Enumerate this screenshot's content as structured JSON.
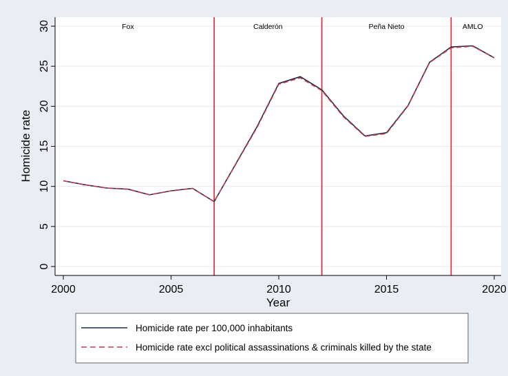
{
  "chart_data": {
    "type": "line",
    "title": "",
    "xlabel": "Year",
    "ylabel": "Homicide rate",
    "xlim": [
      2000,
      2020
    ],
    "ylim": [
      0,
      30
    ],
    "xticks": [
      2000,
      2005,
      2010,
      2015,
      2020
    ],
    "yticks": [
      0,
      5,
      10,
      15,
      20,
      25,
      30
    ],
    "grid": true,
    "legend_position": "bottom",
    "colors": {
      "series1": "#1a2b4a",
      "series2": "#c0394d",
      "vline": "#e8202a",
      "background": "#e8eef3",
      "plot_bg": "#ffffff",
      "grid": "#e5e9ee"
    },
    "series": [
      {
        "name": "Homicide rate per 100,000 inhabitants",
        "style": "solid",
        "x": [
          2000,
          2001,
          2002,
          2003,
          2004,
          2005,
          2006,
          2007,
          2008,
          2009,
          2010,
          2011,
          2012,
          2013,
          2014,
          2015,
          2016,
          2017,
          2018,
          2019,
          2020
        ],
        "values": [
          10.7,
          10.2,
          9.8,
          9.65,
          8.95,
          9.45,
          9.75,
          8.1,
          12.8,
          17.5,
          22.85,
          23.7,
          22.05,
          18.8,
          16.3,
          16.7,
          20.1,
          25.5,
          27.4,
          27.55,
          26.05
        ]
      },
      {
        "name": "Homicide rate excl political assassinations & criminals killed by the state",
        "style": "dashed",
        "x": [
          2000,
          2001,
          2002,
          2003,
          2004,
          2005,
          2006,
          2007,
          2008,
          2009,
          2010,
          2011,
          2012,
          2013,
          2014,
          2015,
          2016,
          2017,
          2018,
          2019,
          2020
        ],
        "values": [
          10.7,
          10.2,
          9.8,
          9.65,
          8.95,
          9.45,
          9.75,
          8.1,
          12.75,
          17.4,
          22.75,
          23.55,
          21.95,
          18.7,
          16.25,
          16.6,
          20.05,
          25.45,
          27.3,
          27.5,
          26.05
        ]
      }
    ],
    "vlines": [
      2007,
      2012,
      2018
    ],
    "annotations": [
      {
        "text": "Fox",
        "x": 2003
      },
      {
        "text": "Calderón",
        "x": 2009.5
      },
      {
        "text": "Peña Nieto",
        "x": 2015
      },
      {
        "text": "AMLO",
        "x": 2019
      }
    ]
  }
}
